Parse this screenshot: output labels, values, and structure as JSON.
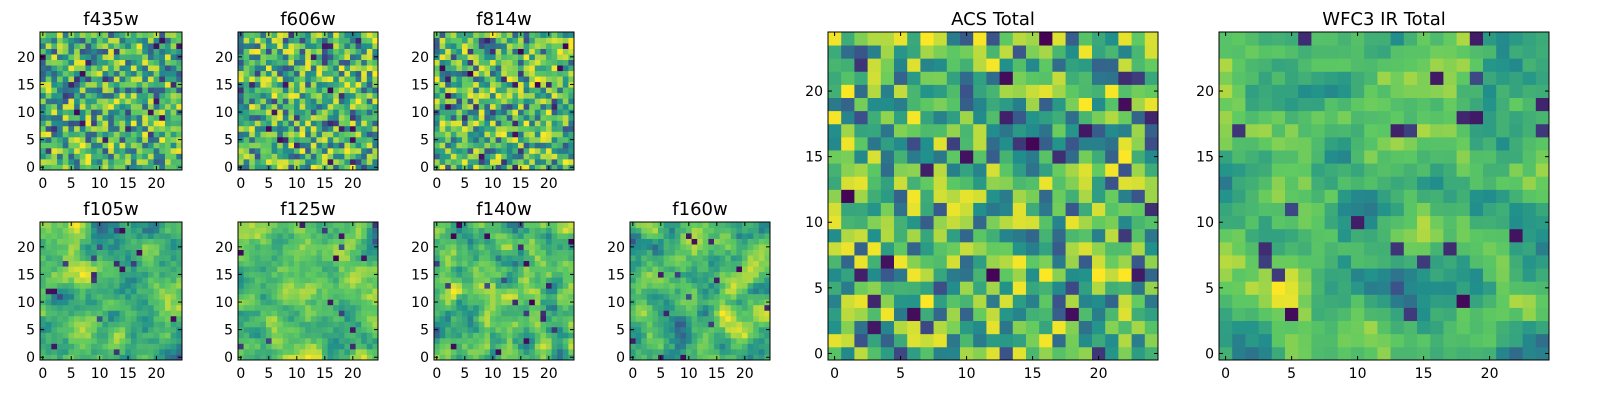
{
  "figure": {
    "colormap": "viridis",
    "colormap_stops": [
      "#440154",
      "#3b528b",
      "#21918c",
      "#5ec962",
      "#fde725"
    ]
  },
  "chart_data": [
    {
      "id": "f435w",
      "type": "heatmap",
      "title": "f435w",
      "grid_size": 25,
      "xlim": [
        -0.5,
        24.5
      ],
      "ylim": [
        -0.5,
        24.5
      ],
      "xticks": [
        0,
        5,
        10,
        15,
        20
      ],
      "yticks": [
        0,
        5,
        10,
        15,
        20
      ],
      "grid": false,
      "smoothness": 0,
      "seed": 11
    },
    {
      "id": "f606w",
      "type": "heatmap",
      "title": "f606w",
      "grid_size": 25,
      "xlim": [
        -0.5,
        24.5
      ],
      "ylim": [
        -0.5,
        24.5
      ],
      "xticks": [
        0,
        5,
        10,
        15,
        20
      ],
      "yticks": [
        0,
        5,
        10,
        15,
        20
      ],
      "grid": false,
      "smoothness": 0,
      "seed": 23
    },
    {
      "id": "f814w",
      "type": "heatmap",
      "title": "f814w",
      "grid_size": 25,
      "xlim": [
        -0.5,
        24.5
      ],
      "ylim": [
        -0.5,
        24.5
      ],
      "xticks": [
        0,
        5,
        10,
        15,
        20
      ],
      "yticks": [
        0,
        5,
        10,
        15,
        20
      ],
      "grid": false,
      "smoothness": 0,
      "seed": 37
    },
    {
      "id": "f105w",
      "type": "heatmap",
      "title": "f105w",
      "grid_size": 25,
      "xlim": [
        -0.5,
        24.5
      ],
      "ylim": [
        -0.5,
        24.5
      ],
      "xticks": [
        0,
        5,
        10,
        15,
        20
      ],
      "yticks": [
        0,
        5,
        10,
        15,
        20
      ],
      "grid": false,
      "smoothness": 2,
      "seed": 41
    },
    {
      "id": "f125w",
      "type": "heatmap",
      "title": "f125w",
      "grid_size": 25,
      "xlim": [
        -0.5,
        24.5
      ],
      "ylim": [
        -0.5,
        24.5
      ],
      "xticks": [
        0,
        5,
        10,
        15,
        20
      ],
      "yticks": [
        0,
        5,
        10,
        15,
        20
      ],
      "grid": false,
      "smoothness": 2,
      "seed": 53
    },
    {
      "id": "f140w",
      "type": "heatmap",
      "title": "f140w",
      "grid_size": 25,
      "xlim": [
        -0.5,
        24.5
      ],
      "ylim": [
        -0.5,
        24.5
      ],
      "xticks": [
        0,
        5,
        10,
        15,
        20
      ],
      "yticks": [
        0,
        5,
        10,
        15,
        20
      ],
      "grid": false,
      "smoothness": 1,
      "seed": 67
    },
    {
      "id": "f160w",
      "type": "heatmap",
      "title": "f160w",
      "grid_size": 25,
      "xlim": [
        -0.5,
        24.5
      ],
      "ylim": [
        -0.5,
        24.5
      ],
      "xticks": [
        0,
        5,
        10,
        15,
        20
      ],
      "yticks": [
        0,
        5,
        10,
        15,
        20
      ],
      "grid": false,
      "smoothness": 2,
      "seed": 79
    },
    {
      "id": "acs-total",
      "type": "heatmap",
      "title": "ACS Total",
      "grid_size": 25,
      "xlim": [
        -0.5,
        24.5
      ],
      "ylim": [
        -0.5,
        24.5
      ],
      "xticks": [
        0,
        5,
        10,
        15,
        20
      ],
      "yticks": [
        0,
        5,
        10,
        15,
        20
      ],
      "grid": false,
      "smoothness": 0,
      "seed": 97
    },
    {
      "id": "wfc3-ir-total",
      "type": "heatmap",
      "title": "WFC3 IR Total",
      "grid_size": 25,
      "xlim": [
        -0.5,
        24.5
      ],
      "ylim": [
        -0.5,
        24.5
      ],
      "xticks": [
        0,
        5,
        10,
        15,
        20
      ],
      "yticks": [
        0,
        5,
        10,
        15,
        20
      ],
      "grid": false,
      "smoothness": 2,
      "seed": 131
    }
  ]
}
